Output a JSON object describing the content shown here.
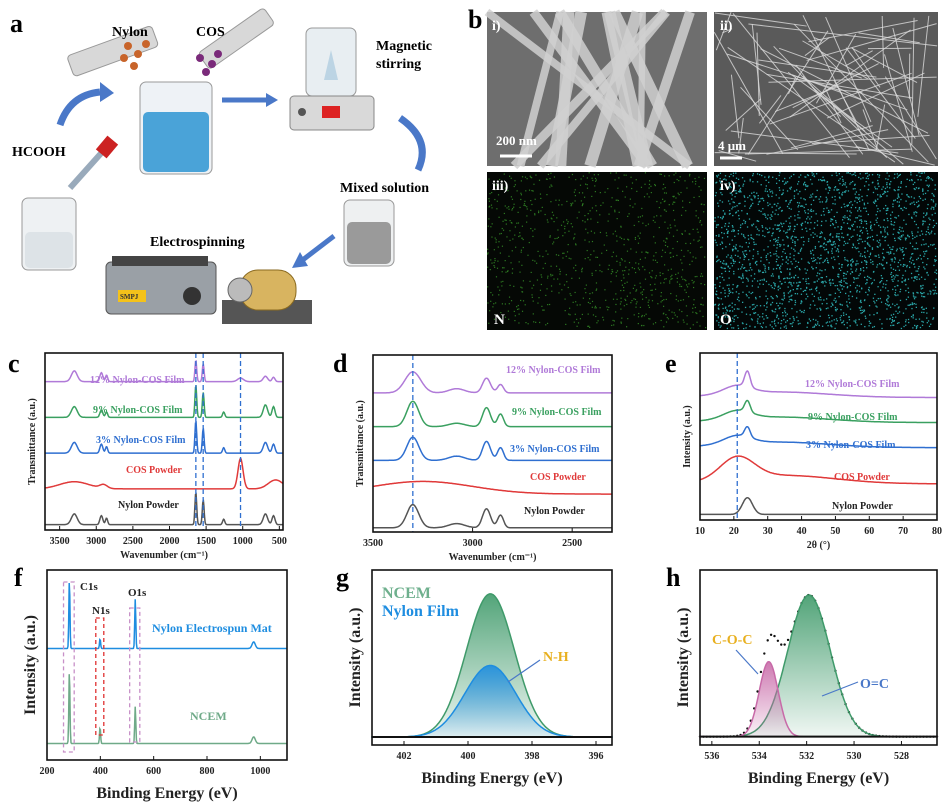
{
  "panel_letters": {
    "a": "a",
    "b": "b",
    "c": "c",
    "d": "d",
    "e": "e",
    "f": "f",
    "g": "g",
    "h": "h"
  },
  "panel_a": {
    "nylon": "Nylon",
    "cos": "COS",
    "hcooh": "HCOOH",
    "stirring_1": "Magnetic",
    "stirring_2": "stirring",
    "mixed": "Mixed solution",
    "electrospinning": "Electrospinning",
    "pump_display": "SMPJ"
  },
  "panel_b": {
    "i": "i)",
    "ii": "ii)",
    "iii": "iii)",
    "iv": "iv)",
    "scale_i": "200 nm",
    "scale_ii": "4 μm",
    "element_n": "N",
    "element_o": "O",
    "colors": {
      "n": "#2d7a22",
      "o": "#2aa6a8"
    }
  },
  "chart_data": [
    {
      "id": "c",
      "type": "line",
      "title": "",
      "xlabel": "Wavenumber (cm⁻¹)",
      "ylabel": "Transmittance (a.u.)",
      "xlim": [
        3700,
        450
      ],
      "ylim": [
        -0.15,
        4.8
      ],
      "xticks": [
        3500,
        3000,
        2500,
        2000,
        1500,
        1000,
        500
      ],
      "grid": false,
      "reference_lines": [
        1640,
        1540,
        1030
      ],
      "series": [
        {
          "name": "Nylon Powder",
          "color": "#555555",
          "offset": 0,
          "peaks": [
            [
              3300,
              0.3,
              40
            ],
            [
              2930,
              0.25,
              20
            ],
            [
              2860,
              0.18,
              15
            ],
            [
              1640,
              0.9,
              12
            ],
            [
              1540,
              0.7,
              12
            ],
            [
              1260,
              0.15,
              15
            ],
            [
              690,
              0.3,
              30
            ],
            [
              580,
              0.25,
              20
            ]
          ]
        },
        {
          "name": "COS Powder",
          "color": "#e03a3a",
          "offset": 1,
          "peaks": [
            [
              3300,
              0.2,
              200
            ],
            [
              2900,
              0.1,
              50
            ],
            [
              1030,
              0.85,
              35
            ],
            [
              550,
              0.25,
              100
            ]
          ]
        },
        {
          "name": "3% Nylon-COS Film",
          "color": "#2f6fd0",
          "offset": 2,
          "peaks": [
            [
              3300,
              0.3,
              40
            ],
            [
              2930,
              0.25,
              20
            ],
            [
              2860,
              0.18,
              15
            ],
            [
              1640,
              0.9,
              12
            ],
            [
              1540,
              0.7,
              12
            ],
            [
              1260,
              0.15,
              15
            ],
            [
              690,
              0.3,
              30
            ],
            [
              580,
              0.25,
              20
            ]
          ]
        },
        {
          "name": "9% Nylon-COS Film",
          "color": "#3aa060",
          "offset": 3,
          "peaks": [
            [
              3300,
              0.3,
              40
            ],
            [
              2930,
              0.2,
              20
            ],
            [
              2860,
              0.15,
              15
            ],
            [
              1640,
              0.9,
              12
            ],
            [
              1540,
              0.7,
              12
            ],
            [
              1260,
              0.15,
              15
            ],
            [
              690,
              0.35,
              30
            ],
            [
              580,
              0.3,
              20
            ]
          ]
        },
        {
          "name": "12% Nylon-COS Film",
          "color": "#b07ad8",
          "offset": 4,
          "peaks": [
            [
              3300,
              0.3,
              40
            ],
            [
              2930,
              0.25,
              20
            ],
            [
              2860,
              0.18,
              15
            ],
            [
              1640,
              0.6,
              12
            ],
            [
              1540,
              0.5,
              12
            ],
            [
              1030,
              0.1,
              40
            ],
            [
              690,
              0.15,
              30
            ],
            [
              580,
              0.12,
              20
            ]
          ]
        }
      ]
    },
    {
      "id": "d",
      "type": "line",
      "title": "",
      "xlabel": "Wavenumber (cm⁻¹)",
      "ylabel": "Transmittance (a.u.)",
      "xlim": [
        3500,
        2300
      ],
      "ylim": [
        -0.1,
        4.1
      ],
      "xticks": [
        3500,
        3000,
        2500
      ],
      "grid": false,
      "reference_lines": [
        3300
      ],
      "series": [
        {
          "name": "Nylon Powder",
          "color": "#555555",
          "offset": 0,
          "peaks": [
            [
              3300,
              0.55,
              30
            ],
            [
              3080,
              0.1,
              40
            ],
            [
              2930,
              0.45,
              20
            ],
            [
              2860,
              0.3,
              15
            ]
          ]
        },
        {
          "name": "COS Powder",
          "color": "#e03a3a",
          "offset": 0.8,
          "peaks": [
            [
              3250,
              0.3,
              250
            ]
          ]
        },
        {
          "name": "3% Nylon-COS Film",
          "color": "#2f6fd0",
          "offset": 1.6,
          "peaks": [
            [
              3300,
              0.55,
              30
            ],
            [
              3080,
              0.1,
              40
            ],
            [
              2930,
              0.45,
              20
            ],
            [
              2860,
              0.3,
              15
            ]
          ]
        },
        {
          "name": "9% Nylon-COS Film",
          "color": "#3aa060",
          "offset": 2.4,
          "peaks": [
            [
              3300,
              0.6,
              30
            ],
            [
              3080,
              0.08,
              40
            ],
            [
              2930,
              0.45,
              20
            ],
            [
              2860,
              0.3,
              15
            ]
          ]
        },
        {
          "name": "12% Nylon-COS Film",
          "color": "#b07ad8",
          "offset": 3.2,
          "peaks": [
            [
              3300,
              0.5,
              40
            ],
            [
              3080,
              0.1,
              40
            ],
            [
              2930,
              0.35,
              20
            ],
            [
              2860,
              0.2,
              15
            ]
          ]
        }
      ]
    },
    {
      "id": "e",
      "type": "line",
      "title": "",
      "xlabel": "2θ (°)",
      "ylabel": "Intensity (a.u.)",
      "xlim": [
        10,
        80
      ],
      "ylim": [
        -0.1,
        2.9
      ],
      "xticks": [
        10,
        20,
        30,
        40,
        50,
        60,
        70,
        80
      ],
      "grid": false,
      "reference_lines": [
        21
      ],
      "series": [
        {
          "name": "Nylon Powder",
          "color": "#555555",
          "offset": 0,
          "peaks": [
            [
              24,
              0.3,
              1.5
            ]
          ]
        },
        {
          "name": "COS Powder",
          "color": "#e03a3a",
          "offset": 0.55,
          "peaks": [
            [
              21,
              0.4,
              5
            ],
            [
              35,
              0.15,
              15
            ]
          ]
        },
        {
          "name": "3% Nylon-COS Film",
          "color": "#2f6fd0",
          "offset": 1.2,
          "peaks": [
            [
              24,
              0.18,
              0.8
            ],
            [
              21,
              0.15,
              4
            ],
            [
              33,
              0.1,
              15
            ]
          ]
        },
        {
          "name": "9% Nylon-COS Film",
          "color": "#3aa060",
          "offset": 1.65,
          "peaks": [
            [
              24,
              0.2,
              0.8
            ],
            [
              21,
              0.15,
              4
            ],
            [
              33,
              0.1,
              15
            ]
          ]
        },
        {
          "name": "12% Nylon-COS Film",
          "color": "#b07ad8",
          "offset": 2.1,
          "peaks": [
            [
              24,
              0.28,
              0.8
            ],
            [
              21,
              0.15,
              4
            ],
            [
              33,
              0.1,
              15
            ]
          ]
        }
      ]
    },
    {
      "id": "f",
      "type": "line",
      "title": "",
      "xlabel": "Binding Energy (eV)",
      "ylabel": "Intensity (a.u.)",
      "xlim": [
        200,
        1100
      ],
      "ylim": [
        0,
        2.3
      ],
      "xticks": [
        200,
        400,
        600,
        800,
        1000
      ],
      "grid": false,
      "annotations": [
        "C1s",
        "N1s",
        "O1s"
      ],
      "series": [
        {
          "name": "Nylon Electrospun Mat",
          "color": "#1e8de0",
          "offset": 1.35,
          "peaks": [
            [
              284,
              0.85,
              2
            ],
            [
              399,
              0.12,
              2
            ],
            [
              531,
              0.6,
              2
            ],
            [
              975,
              0.08,
              6
            ]
          ]
        },
        {
          "name": "NCEM",
          "color": "#6faa88",
          "offset": 0.2,
          "peaks": [
            [
              284,
              0.9,
              2
            ],
            [
              399,
              0.2,
              2
            ],
            [
              531,
              0.45,
              2
            ],
            [
              975,
              0.08,
              6
            ]
          ]
        }
      ]
    },
    {
      "id": "g",
      "type": "area",
      "title": "",
      "xlabel": "Binding Energy (eV)",
      "ylabel": "Intensity (a.u.)",
      "xlim": [
        403,
        395.5
      ],
      "ylim": [
        -0.05,
        1.05
      ],
      "xticks": [
        402,
        400,
        398,
        396
      ],
      "grid": false,
      "annotations": [
        "N-H"
      ],
      "series": [
        {
          "name": "NCEM",
          "color": "#3f9a6a",
          "offset": 0,
          "peaks": [
            [
              399.3,
              0.9,
              0.75
            ]
          ]
        },
        {
          "name": "Nylon Film",
          "color": "#1e8de0",
          "offset": 0,
          "peaks": [
            [
              399.3,
              0.45,
              0.8
            ]
          ]
        }
      ]
    },
    {
      "id": "h",
      "type": "area",
      "title": "",
      "xlabel": "Binding Energy (eV)",
      "ylabel": "Intensity (a.u.)",
      "xlim": [
        536.5,
        526.5
      ],
      "ylim": [
        -0.05,
        1.0
      ],
      "xticks": [
        536,
        534,
        532,
        530,
        528
      ],
      "grid": false,
      "annotations": [
        "C-O-C",
        "O=C"
      ],
      "series": [
        {
          "name": "O=C",
          "color": "#3f9a6a",
          "offset": 0,
          "peaks": [
            [
              531.9,
              0.85,
              0.9
            ]
          ]
        },
        {
          "name": "C-O-C",
          "color": "#c86aa8",
          "offset": 0,
          "peaks": [
            [
              533.6,
              0.45,
              0.4
            ]
          ]
        }
      ]
    }
  ]
}
